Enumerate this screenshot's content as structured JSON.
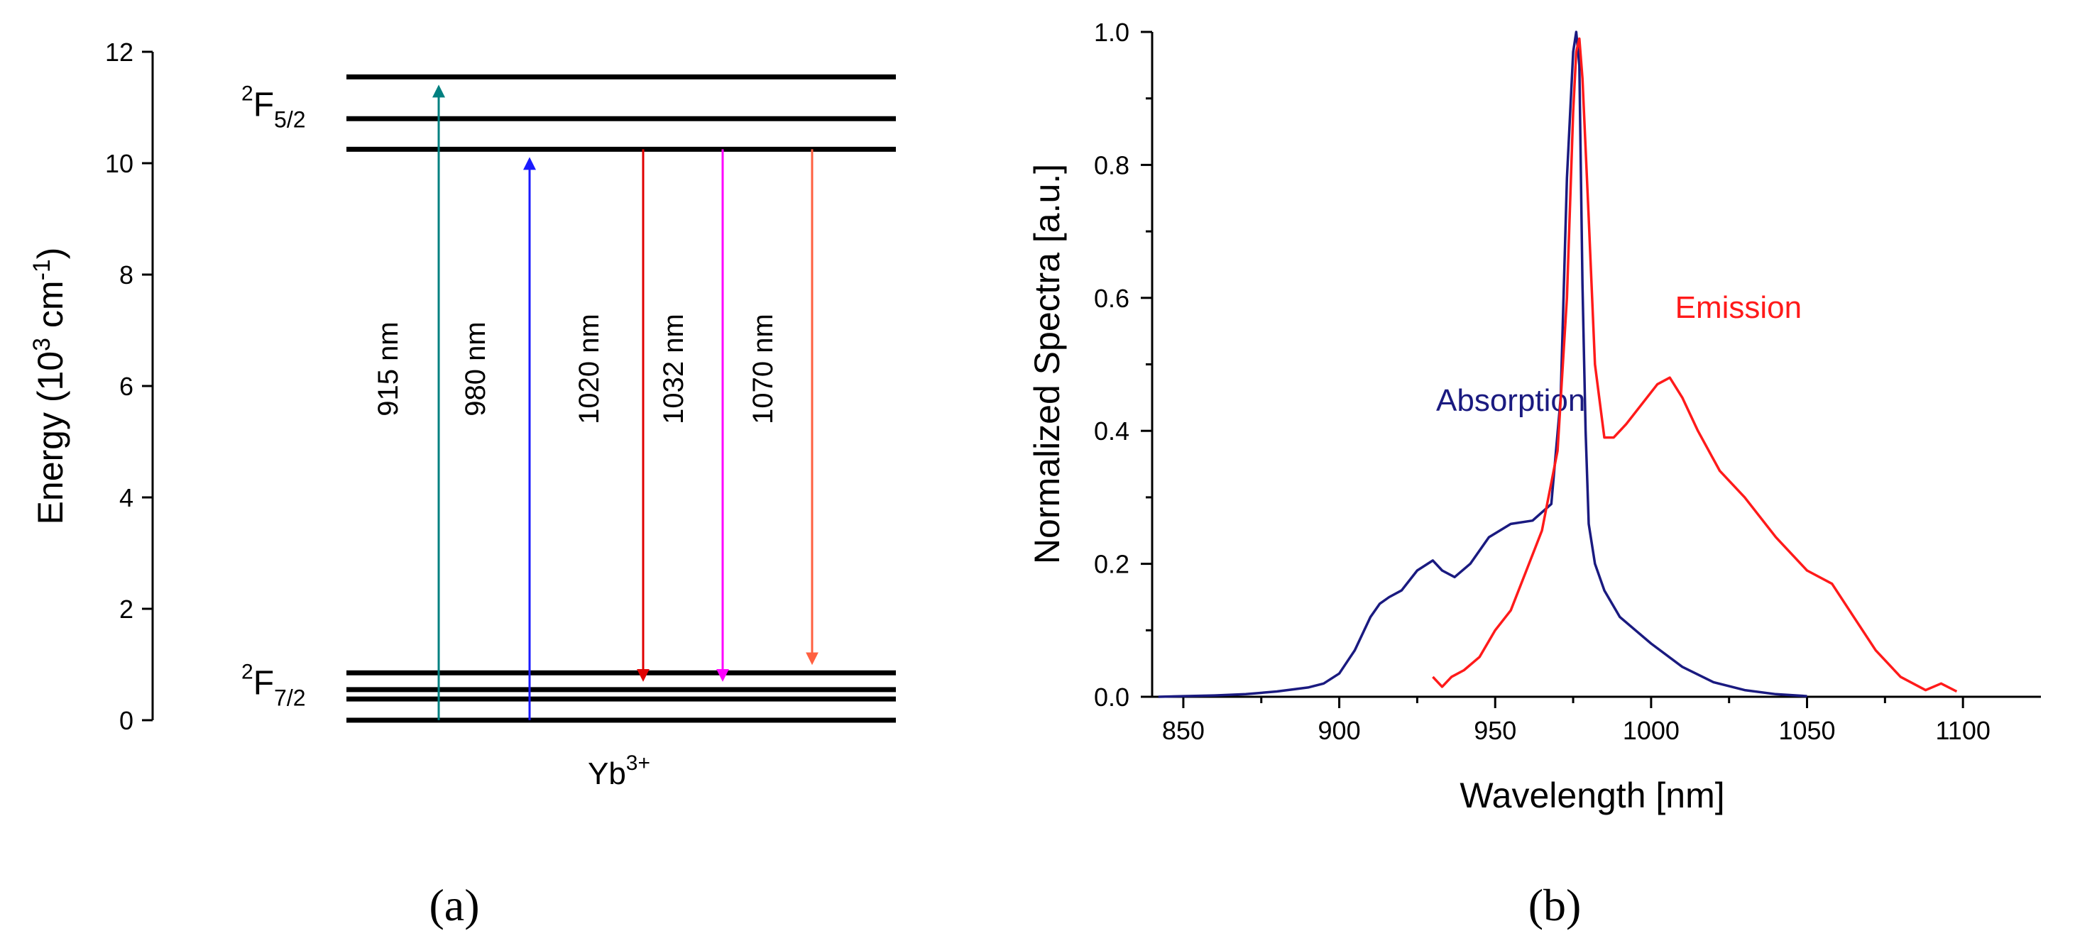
{
  "chart_data": [
    {
      "panel": "(a)",
      "type": "energy-level-diagram",
      "ylabel": "Energy (10<sup>3</sup> cm<sup>-1</sup>)",
      "ylim": [
        0,
        12
      ],
      "yticks": [
        0,
        2,
        4,
        6,
        8,
        10,
        12
      ],
      "ion": "Yb",
      "ion_charge": "3+",
      "manifolds": [
        {
          "term": "F",
          "multiplicity": "2",
          "j": "5/2",
          "levels": [
            10.25,
            10.8,
            11.55
          ]
        },
        {
          "term": "F",
          "multiplicity": "2",
          "j": "7/2",
          "levels": [
            0.0,
            0.38,
            0.55,
            0.85
          ]
        }
      ],
      "transitions": [
        {
          "label": "915 nm",
          "from": 0.0,
          "to": 11.55,
          "direction": "up",
          "color": "#008080"
        },
        {
          "label": "980 nm",
          "from": 0.0,
          "to": 10.25,
          "direction": "up",
          "color": "#1a1aff"
        },
        {
          "label": "1020 nm",
          "from": 10.25,
          "to": 0.55,
          "direction": "down",
          "color": "#e00000"
        },
        {
          "label": "1032 nm",
          "from": 10.25,
          "to": 0.55,
          "direction": "down",
          "color": "#ff00ff"
        },
        {
          "label": "1070 nm",
          "from": 10.25,
          "to": 0.85,
          "direction": "down",
          "color": "#ff6040"
        }
      ]
    },
    {
      "panel": "(b)",
      "type": "line",
      "xlabel": "Wavelength [nm]",
      "ylabel": "Normalized Spectra [a.u.]",
      "xlim": [
        840,
        1125
      ],
      "ylim": [
        0,
        1.0
      ],
      "xticks": [
        850,
        900,
        950,
        1000,
        1050,
        1100
      ],
      "yticks": [
        "0.0",
        "0.2",
        "0.4",
        "0.6",
        "0.8",
        "1.0"
      ],
      "series": [
        {
          "name": "Absorption",
          "color": "#1a1a80",
          "label_at": [
            955,
            0.43
          ],
          "x": [
            842,
            850,
            860,
            870,
            880,
            890,
            895,
            900,
            905,
            910,
            913,
            916,
            920,
            925,
            930,
            933,
            937,
            942,
            948,
            955,
            962,
            968,
            971,
            973,
            975,
            976,
            977,
            978,
            979,
            980,
            982,
            985,
            990,
            995,
            1000,
            1010,
            1020,
            1030,
            1040,
            1050
          ],
          "y": [
            0.0,
            0.001,
            0.002,
            0.004,
            0.008,
            0.014,
            0.02,
            0.035,
            0.07,
            0.12,
            0.14,
            0.15,
            0.16,
            0.19,
            0.205,
            0.19,
            0.18,
            0.2,
            0.24,
            0.26,
            0.265,
            0.29,
            0.45,
            0.78,
            0.97,
            1.0,
            0.95,
            0.62,
            0.4,
            0.26,
            0.2,
            0.16,
            0.12,
            0.1,
            0.08,
            0.045,
            0.022,
            0.01,
            0.004,
            0.001
          ]
        },
        {
          "name": "Emission",
          "color": "#ff1a1a",
          "label_at": [
            1028,
            0.57
          ],
          "x": [
            930,
            933,
            936,
            940,
            945,
            950,
            955,
            960,
            965,
            970,
            973,
            975,
            976,
            977,
            978,
            980,
            982,
            985,
            988,
            992,
            997,
            1002,
            1006,
            1010,
            1015,
            1022,
            1030,
            1040,
            1050,
            1058,
            1065,
            1072,
            1080,
            1088,
            1093,
            1098
          ],
          "y": [
            0.03,
            0.015,
            0.03,
            0.04,
            0.06,
            0.1,
            0.13,
            0.19,
            0.25,
            0.37,
            0.6,
            0.88,
            0.97,
            0.99,
            0.93,
            0.72,
            0.5,
            0.39,
            0.39,
            0.41,
            0.44,
            0.47,
            0.48,
            0.45,
            0.4,
            0.34,
            0.3,
            0.24,
            0.19,
            0.17,
            0.12,
            0.07,
            0.03,
            0.01,
            0.02,
            0.008
          ]
        }
      ]
    }
  ],
  "panel_labels": {
    "a": "(a)",
    "b": "(b)"
  }
}
